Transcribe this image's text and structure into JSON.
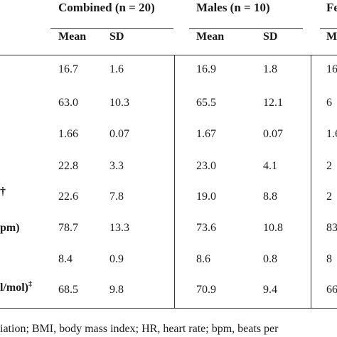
{
  "table": {
    "group_headers": {
      "combined": "Combined (n = 20)",
      "males": "Males (n = 10)",
      "females": "Fe"
    },
    "sub_headers": {
      "combined_mean": "Mean",
      "combined_sd": "SD",
      "males_mean": "Mean",
      "males_sd": "SD",
      "females_mean": "M"
    },
    "row_labels": {
      "r3": "†",
      "r4": "pm)",
      "r6": "l/mol)",
      "r6_sup": "‡"
    },
    "rows": [
      {
        "c_mean": "16.7",
        "c_sd": "1.6",
        "m_mean": "16.9",
        "m_sd": "1.8",
        "f_mean": "16"
      },
      {
        "c_mean": "63.0",
        "c_sd": "10.3",
        "m_mean": "65.5",
        "m_sd": "12.1",
        "f_mean": "6"
      },
      {
        "c_mean": "1.66",
        "c_sd": "0.07",
        "m_mean": "1.67",
        "m_sd": "0.07",
        "f_mean": "1.6"
      },
      {
        "c_mean": "22.8",
        "c_sd": "3.3",
        "m_mean": "23.0",
        "m_sd": "4.1",
        "f_mean": "2"
      },
      {
        "c_mean": "22.6",
        "c_sd": "7.8",
        "m_mean": "19.0",
        "m_sd": "8.8",
        "f_mean": "2"
      },
      {
        "c_mean": "78.7",
        "c_sd": "13.3",
        "m_mean": "73.6",
        "m_sd": "10.8",
        "f_mean": "83"
      },
      {
        "c_mean": "8.4",
        "c_sd": "0.9",
        "m_mean": "8.6",
        "m_sd": "0.8",
        "f_mean": "8"
      },
      {
        "c_mean": "68.5",
        "c_sd": "9.8",
        "m_mean": "70.9",
        "m_sd": "9.4",
        "f_mean": "66"
      }
    ],
    "footnote": "iation; BMI, body mass index; HR, heart rate; bpm, beats per"
  }
}
